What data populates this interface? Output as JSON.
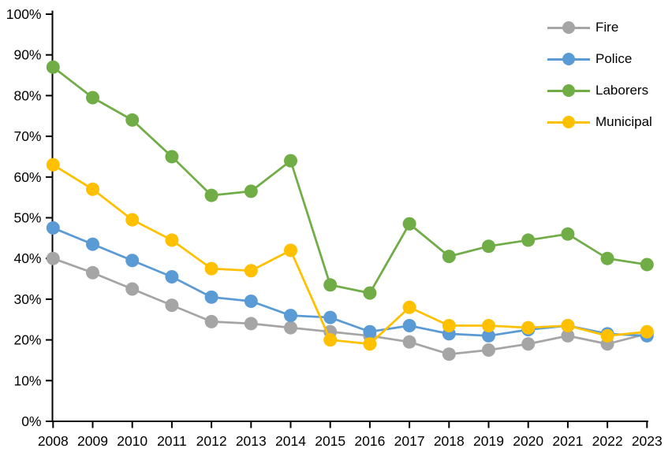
{
  "chart_data": {
    "type": "line",
    "title": "",
    "xlabel": "",
    "ylabel": "",
    "x": [
      "2008",
      "2009",
      "2010",
      "2011",
      "2012",
      "2013",
      "2014",
      "2015",
      "2016",
      "2017",
      "2018",
      "2019",
      "2020",
      "2021",
      "2022",
      "2023"
    ],
    "y_tick_labels": [
      "0%",
      "10%",
      "20%",
      "30%",
      "40%",
      "50%",
      "60%",
      "70%",
      "80%",
      "90%",
      "100%"
    ],
    "ylim": [
      0,
      100
    ],
    "grid": false,
    "legend_position": "top-right",
    "axis_color": "#000000",
    "background_color": "#ffffff",
    "series": [
      {
        "name": "Fire",
        "color": "#A5A5A5",
        "values": [
          40,
          36.5,
          32.5,
          28.5,
          24.5,
          24,
          23,
          22,
          21,
          19.5,
          16.5,
          17.5,
          19,
          21,
          19,
          21.5
        ]
      },
      {
        "name": "Police",
        "color": "#5B9BD5",
        "values": [
          47.5,
          43.5,
          39.5,
          35.5,
          30.5,
          29.5,
          26,
          25.5,
          22,
          23.5,
          21.5,
          21,
          22.5,
          23.5,
          21.5,
          21
        ]
      },
      {
        "name": "Laborers",
        "color": "#70AD47",
        "values": [
          87,
          79.5,
          74,
          65,
          55.5,
          56.5,
          64,
          33.5,
          31.5,
          48.5,
          40.5,
          43,
          44.5,
          46,
          40,
          38.5
        ]
      },
      {
        "name": "Municipal",
        "color": "#FFC000",
        "values": [
          63,
          57,
          49.5,
          44.5,
          37.5,
          37,
          42,
          20,
          19,
          28,
          23.5,
          23.5,
          23,
          23.5,
          21,
          22
        ]
      }
    ]
  }
}
